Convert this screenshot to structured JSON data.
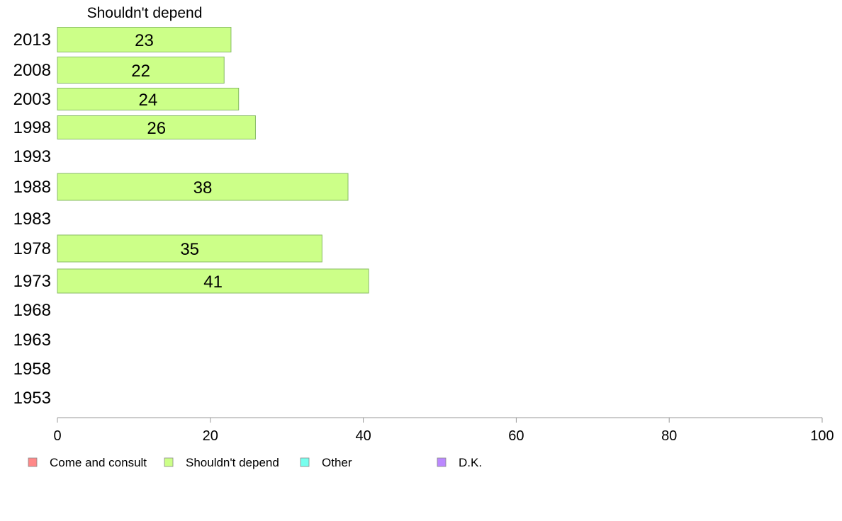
{
  "chart_data": {
    "type": "bar",
    "orientation": "horizontal",
    "title": "Shouldn't depend",
    "categories": [
      "2013",
      "2008",
      "2003",
      "1998",
      "1993",
      "1988",
      "1983",
      "1978",
      "1973",
      "1968",
      "1963",
      "1958",
      "1953"
    ],
    "values": [
      22.7,
      21.8,
      23.7,
      25.9,
      null,
      38.0,
      null,
      34.6,
      40.7,
      null,
      null,
      null,
      null
    ],
    "data_labels": [
      "23",
      "22",
      "24",
      "26",
      "",
      "38",
      "",
      "35",
      "41",
      "",
      "",
      "",
      ""
    ],
    "xlim": [
      0,
      100
    ],
    "xticks": [
      0,
      20,
      40,
      60,
      80,
      100
    ],
    "bar_color": "#ccff88",
    "bar_edge_color": "#88bb66",
    "axis_color": "#999999",
    "legend": {
      "position": "bottom",
      "items": [
        {
          "label": "Come and consult",
          "color": "#ff8888"
        },
        {
          "label": "Shouldn't depend",
          "color": "#ccff88"
        },
        {
          "label": "Other",
          "color": "#77ffee"
        },
        {
          "label": "D.K.",
          "color": "#bb88ff"
        }
      ]
    }
  }
}
